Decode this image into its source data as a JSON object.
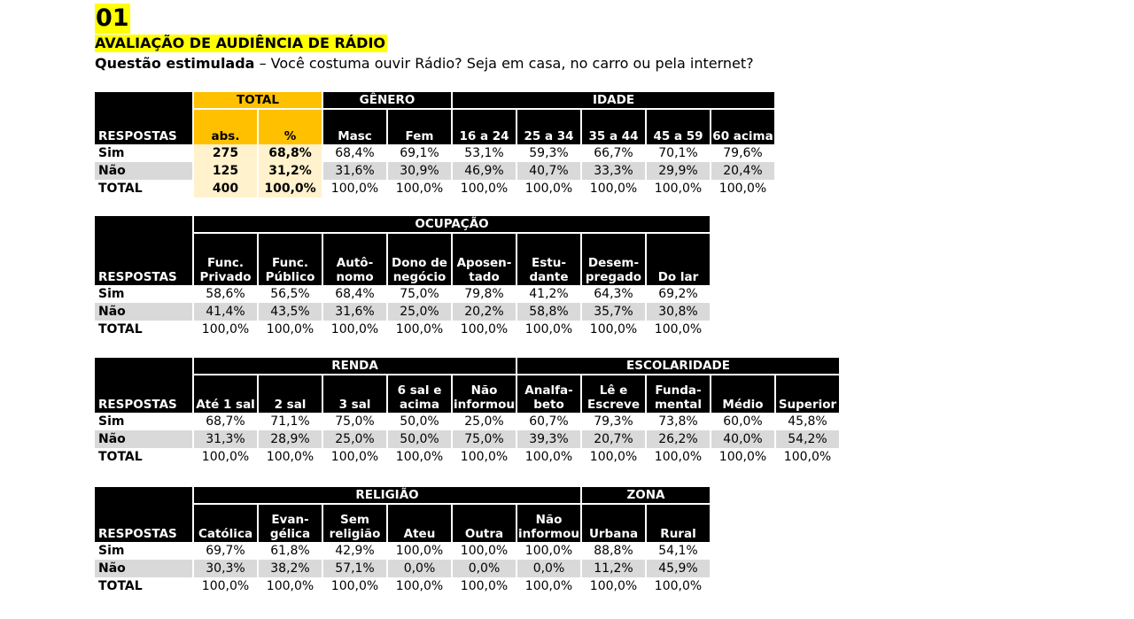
{
  "header": {
    "number": "01",
    "title": "AVALIAÇÃO DE AUDIÊNCIA DE RÁDIO",
    "question_bold": "Questão estimulada",
    "question_text": " – Você costuma ouvir Rádio? Seja em casa, no carro ou pela internet?"
  },
  "colors": {
    "highlight": "#ffff00",
    "total_header": "#ffc000",
    "total_cells": "#fff2cc",
    "header_bg": "#000000",
    "zebra": "#d9d9d9"
  },
  "resp_label": "RESPOSTAS",
  "row_labels": [
    "Sim",
    "Não",
    "TOTAL"
  ],
  "table1": {
    "groups": [
      "TOTAL",
      "GÊNERO",
      "IDADE"
    ],
    "cols": [
      "abs.",
      "%",
      "Masc",
      "Fem",
      "16 a 24",
      "25 a 34",
      "35 a 44",
      "45 a 59",
      "60 acima"
    ],
    "rows": [
      [
        "275",
        "68,8%",
        "68,4%",
        "69,1%",
        "53,1%",
        "59,3%",
        "66,7%",
        "70,1%",
        "79,6%"
      ],
      [
        "125",
        "31,2%",
        "31,6%",
        "30,9%",
        "46,9%",
        "40,7%",
        "33,3%",
        "29,9%",
        "20,4%"
      ],
      [
        "400",
        "100,0%",
        "100,0%",
        "100,0%",
        "100,0%",
        "100,0%",
        "100,0%",
        "100,0%",
        "100,0%"
      ]
    ]
  },
  "table2": {
    "groups": [
      "OCUPAÇÃO"
    ],
    "cols": [
      "Func. Privado",
      "Func. Público",
      "Autô- nomo",
      "Dono de negócio",
      "Aposen- tado",
      "Estu- dante",
      "Desem- pregado",
      "Do lar"
    ],
    "rows": [
      [
        "58,6%",
        "56,5%",
        "68,4%",
        "75,0%",
        "79,8%",
        "41,2%",
        "64,3%",
        "69,2%"
      ],
      [
        "41,4%",
        "43,5%",
        "31,6%",
        "25,0%",
        "20,2%",
        "58,8%",
        "35,7%",
        "30,8%"
      ],
      [
        "100,0%",
        "100,0%",
        "100,0%",
        "100,0%",
        "100,0%",
        "100,0%",
        "100,0%",
        "100,0%"
      ]
    ]
  },
  "table3": {
    "groups": [
      "RENDA",
      "ESCOLARIDADE"
    ],
    "cols": [
      "Até 1 sal",
      "2 sal",
      "3 sal",
      "6 sal e acima",
      "Não informou",
      "Analfa- beto",
      "Lê e Escreve",
      "Funda- mental",
      "Médio",
      "Superior"
    ],
    "rows": [
      [
        "68,7%",
        "71,1%",
        "75,0%",
        "50,0%",
        "25,0%",
        "60,7%",
        "79,3%",
        "73,8%",
        "60,0%",
        "45,8%"
      ],
      [
        "31,3%",
        "28,9%",
        "25,0%",
        "50,0%",
        "75,0%",
        "39,3%",
        "20,7%",
        "26,2%",
        "40,0%",
        "54,2%"
      ],
      [
        "100,0%",
        "100,0%",
        "100,0%",
        "100,0%",
        "100,0%",
        "100,0%",
        "100,0%",
        "100,0%",
        "100,0%",
        "100,0%"
      ]
    ]
  },
  "table4": {
    "groups": [
      "RELIGIÃO",
      "ZONA"
    ],
    "cols": [
      "Católica",
      "Evan- gélica",
      "Sem religião",
      "Ateu",
      "Outra",
      "Não informou",
      "Urbana",
      "Rural"
    ],
    "rows": [
      [
        "69,7%",
        "61,8%",
        "42,9%",
        "100,0%",
        "100,0%",
        "100,0%",
        "88,8%",
        "54,1%"
      ],
      [
        "30,3%",
        "38,2%",
        "57,1%",
        "0,0%",
        "0,0%",
        "0,0%",
        "11,2%",
        "45,9%"
      ],
      [
        "100,0%",
        "100,0%",
        "100,0%",
        "100,0%",
        "100,0%",
        "100,0%",
        "100,0%",
        "100,0%"
      ]
    ]
  }
}
